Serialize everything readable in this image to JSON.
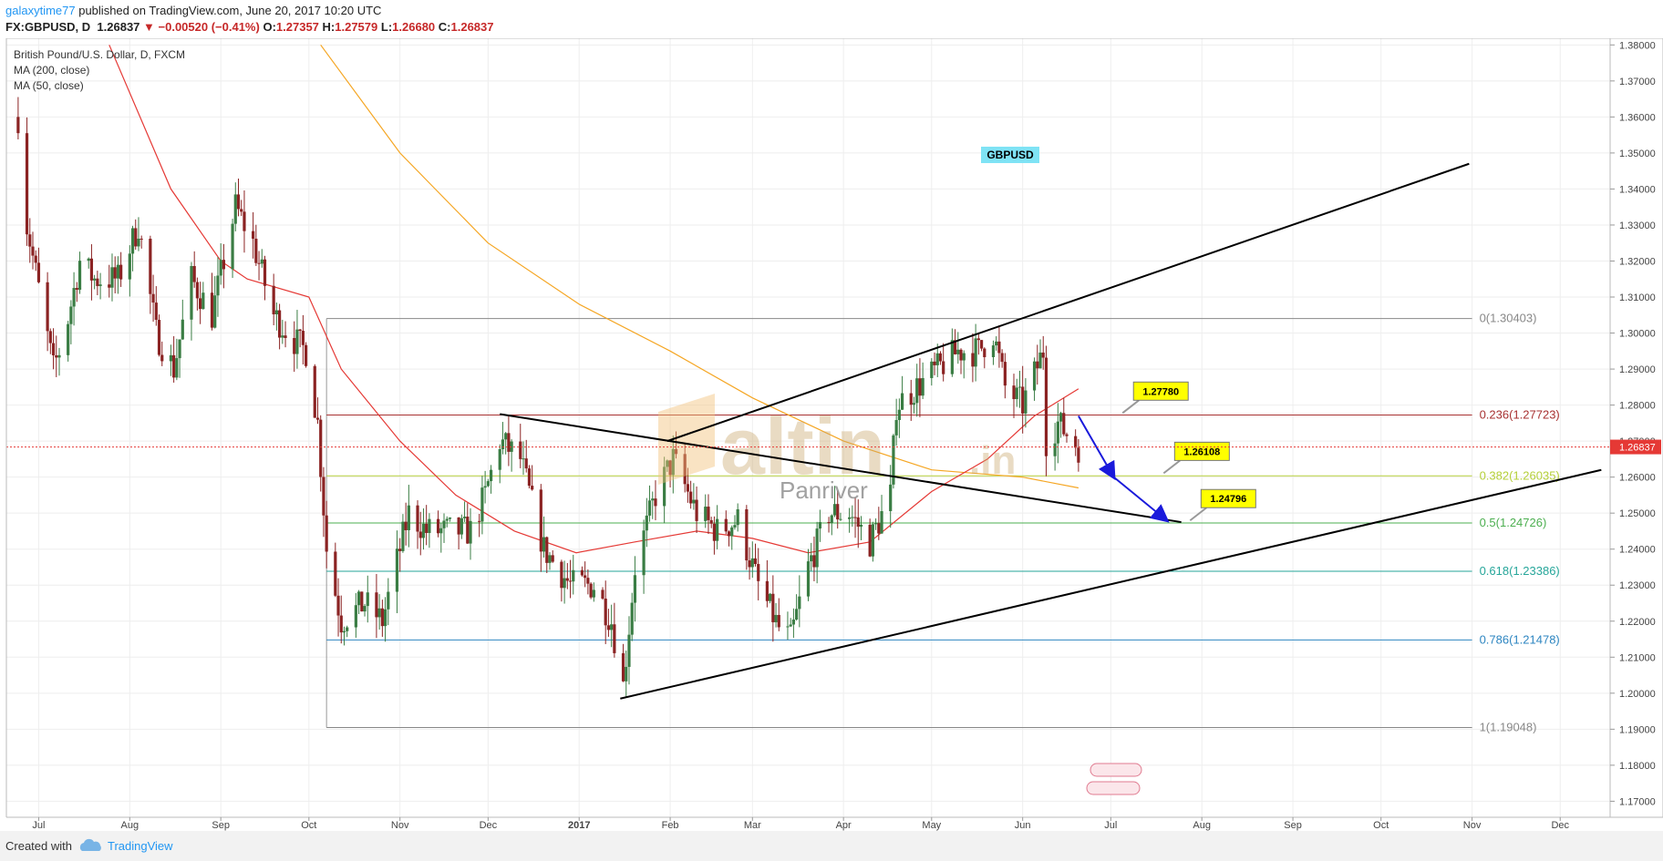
{
  "header": {
    "author": "galaxytime77",
    "published": " published on TradingView.com, June 20, 2017 10:20 UTC",
    "symbol": "FX:GBPUSD, D",
    "last": "1.26837",
    "change": "▼ −0.00520 (−0.41%)",
    "o_label": "O:",
    "o": "1.27357",
    "h_label": "H:",
    "h": "1.27579",
    "l_label": "L:",
    "l": "1.26680",
    "c_label": "C:",
    "c": "1.26837"
  },
  "legend": {
    "line1": "British Pound/U.S. Dollar, D, FXCM",
    "line2": "MA (200, close)",
    "line3": "MA (50, close)"
  },
  "footer": {
    "created_with": "Created with",
    "brand": "TradingView"
  },
  "colors": {
    "up": "#3a7d44",
    "down": "#8b2323",
    "ma50": "#e53935",
    "ma200": "#f5a623",
    "trend": "#000000",
    "arrow": "#1a1adb",
    "callout": "#ffff00",
    "last_price": "#e53935"
  },
  "watermark": {
    "brand": "altin",
    "suffix": ".in",
    "sub": "Panriver"
  },
  "chart_data": {
    "type": "candlestick",
    "title": "British Pound/U.S. Dollar, D, FXCM",
    "ylim": [
      1.16555,
      1.38185
    ],
    "x_domain": [
      "2016-06-20",
      "2017-12-18"
    ],
    "y_ticks": [
      "1.38000",
      "1.37000",
      "1.36000",
      "1.35000",
      "1.34000",
      "1.33000",
      "1.32000",
      "1.31000",
      "1.30000",
      "1.29000",
      "1.28000",
      "1.27000",
      "1.26000",
      "1.25000",
      "1.24000",
      "1.23000",
      "1.22000",
      "1.21000",
      "1.20000",
      "1.19000",
      "1.18000",
      "1.17000"
    ],
    "x_ticks": [
      {
        "label": "Jul",
        "date": "2016-07-01"
      },
      {
        "label": "Aug",
        "date": "2016-08-01"
      },
      {
        "label": "Sep",
        "date": "2016-09-01"
      },
      {
        "label": "Oct",
        "date": "2016-10-01"
      },
      {
        "label": "Nov",
        "date": "2016-11-01"
      },
      {
        "label": "Dec",
        "date": "2016-12-01"
      },
      {
        "label": "2017",
        "date": "2017-01-01"
      },
      {
        "label": "Feb",
        "date": "2017-02-01"
      },
      {
        "label": "Mar",
        "date": "2017-03-01"
      },
      {
        "label": "Apr",
        "date": "2017-04-01"
      },
      {
        "label": "May",
        "date": "2017-05-01"
      },
      {
        "label": "Jun",
        "date": "2017-06-01"
      },
      {
        "label": "Jul",
        "date": "2017-07-01"
      },
      {
        "label": "Aug",
        "date": "2017-08-01"
      },
      {
        "label": "Sep",
        "date": "2017-09-01"
      },
      {
        "label": "Oct",
        "date": "2017-10-01"
      },
      {
        "label": "Nov",
        "date": "2017-11-01"
      },
      {
        "label": "Dec",
        "date": "2017-12-01"
      }
    ],
    "price_path": [
      [
        "2016-06-24",
        1.36
      ],
      [
        "2016-06-27",
        1.33
      ],
      [
        "2016-07-06",
        1.29
      ],
      [
        "2016-07-10",
        1.3
      ],
      [
        "2016-07-15",
        1.32
      ],
      [
        "2016-07-20",
        1.315
      ],
      [
        "2016-07-28",
        1.315
      ],
      [
        "2016-08-04",
        1.33
      ],
      [
        "2016-08-10",
        1.3
      ],
      [
        "2016-08-16",
        1.29
      ],
      [
        "2016-08-22",
        1.315
      ],
      [
        "2016-08-29",
        1.305
      ],
      [
        "2016-09-06",
        1.335
      ],
      [
        "2016-09-12",
        1.325
      ],
      [
        "2016-09-19",
        1.305
      ],
      [
        "2016-09-26",
        1.298
      ],
      [
        "2016-09-30",
        1.295
      ],
      [
        "2016-10-04",
        1.275
      ],
      [
        "2016-10-07",
        1.24
      ],
      [
        "2016-10-12",
        1.22
      ],
      [
        "2016-10-20",
        1.225
      ],
      [
        "2016-10-26",
        1.22
      ],
      [
        "2016-11-04",
        1.25
      ],
      [
        "2016-11-10",
        1.245
      ],
      [
        "2016-11-18",
        1.245
      ],
      [
        "2016-11-25",
        1.245
      ],
      [
        "2016-11-30",
        1.255
      ],
      [
        "2016-12-05",
        1.27
      ],
      [
        "2016-12-12",
        1.265
      ],
      [
        "2016-12-20",
        1.24
      ],
      [
        "2016-12-29",
        1.23
      ],
      [
        "2017-01-06",
        1.23
      ],
      [
        "2017-01-12",
        1.22
      ],
      [
        "2017-01-16",
        1.202
      ],
      [
        "2017-01-20",
        1.235
      ],
      [
        "2017-01-27",
        1.255
      ],
      [
        "2017-02-02",
        1.265
      ],
      [
        "2017-02-10",
        1.25
      ],
      [
        "2017-02-17",
        1.245
      ],
      [
        "2017-02-24",
        1.248
      ],
      [
        "2017-03-03",
        1.23
      ],
      [
        "2017-03-10",
        1.218
      ],
      [
        "2017-03-14",
        1.215
      ],
      [
        "2017-03-20",
        1.235
      ],
      [
        "2017-03-27",
        1.25
      ],
      [
        "2017-04-03",
        1.25
      ],
      [
        "2017-04-10",
        1.242
      ],
      [
        "2017-04-17",
        1.255
      ],
      [
        "2017-04-19",
        1.28
      ],
      [
        "2017-04-26",
        1.285
      ],
      [
        "2017-05-03",
        1.29
      ],
      [
        "2017-05-10",
        1.295
      ],
      [
        "2017-05-17",
        1.295
      ],
      [
        "2017-05-22",
        1.3
      ],
      [
        "2017-05-26",
        1.285
      ],
      [
        "2017-06-01",
        1.28
      ],
      [
        "2017-06-08",
        1.295
      ],
      [
        "2017-06-09",
        1.27
      ],
      [
        "2017-06-13",
        1.275
      ],
      [
        "2017-06-20",
        1.2684
      ]
    ],
    "ma200": [
      [
        "2016-10-05",
        1.38
      ],
      [
        "2016-11-01",
        1.35
      ],
      [
        "2016-12-01",
        1.325
      ],
      [
        "2017-01-01",
        1.308
      ],
      [
        "2017-02-01",
        1.295
      ],
      [
        "2017-03-01",
        1.282
      ],
      [
        "2017-04-01",
        1.27
      ],
      [
        "2017-05-01",
        1.262
      ],
      [
        "2017-06-01",
        1.26
      ],
      [
        "2017-06-20",
        1.257
      ]
    ],
    "ma50": [
      [
        "2016-07-25",
        1.38
      ],
      [
        "2016-08-15",
        1.34
      ],
      [
        "2016-09-01",
        1.32
      ],
      [
        "2016-09-10",
        1.315
      ],
      [
        "2016-10-01",
        1.31
      ],
      [
        "2016-10-12",
        1.29
      ],
      [
        "2016-11-01",
        1.27
      ],
      [
        "2016-11-20",
        1.255
      ],
      [
        "2016-12-10",
        1.245
      ],
      [
        "2016-12-31",
        1.239
      ],
      [
        "2017-01-20",
        1.242
      ],
      [
        "2017-02-10",
        1.245
      ],
      [
        "2017-03-01",
        1.243
      ],
      [
        "2017-03-20",
        1.239
      ],
      [
        "2017-04-10",
        1.242
      ],
      [
        "2017-05-01",
        1.256
      ],
      [
        "2017-05-20",
        1.265
      ],
      [
        "2017-06-05",
        1.277
      ],
      [
        "2017-06-20",
        1.2845
      ]
    ],
    "fib_levels": [
      {
        "ratio": "0",
        "value": 1.30403,
        "label": "0(1.30403)",
        "color": "#888888"
      },
      {
        "ratio": "0.236",
        "value": 1.27723,
        "label": "0.236(1.27723)",
        "color": "#a83232"
      },
      {
        "ratio": "0.382",
        "value": 1.26035,
        "label": "0.382(1.26035)",
        "color": "#b5cf3a"
      },
      {
        "ratio": "0.5",
        "value": 1.24726,
        "label": "0.5(1.24726)",
        "color": "#4caf50"
      },
      {
        "ratio": "0.618",
        "value": 1.23386,
        "label": "0.618(1.23386)",
        "color": "#26a69a"
      },
      {
        "ratio": "0.786",
        "value": 1.21478,
        "label": "0.786(1.21478)",
        "color": "#2e86c1"
      },
      {
        "ratio": "1",
        "value": 1.19048,
        "label": "1(1.19048)",
        "color": "#888888"
      }
    ],
    "fib_start": "2016-10-07",
    "fib_end": "2017-11-01",
    "trendlines": [
      {
        "name": "upper-channel",
        "from": [
          "2017-01-31",
          1.27
        ],
        "to": [
          "2017-10-31",
          1.347
        ]
      },
      {
        "name": "lower-channel",
        "from": [
          "2017-01-15",
          1.1985
        ],
        "to": [
          "2017-12-15",
          1.262
        ]
      },
      {
        "name": "falling-line",
        "from": [
          "2016-12-05",
          1.2775
        ],
        "to": [
          "2017-07-25",
          1.2475
        ]
      }
    ],
    "projection_arrow": [
      [
        "2017-06-20",
        1.277
      ],
      [
        "2017-07-02",
        1.26
      ],
      [
        "2017-07-20",
        1.248
      ]
    ],
    "callouts": [
      {
        "text": "1.27780",
        "value": 1.2778,
        "date": "2017-07-05"
      },
      {
        "text": "1.26108",
        "value": 1.26108,
        "date": "2017-07-19"
      },
      {
        "text": "1.24796",
        "value": 1.24796,
        "date": "2017-07-28"
      }
    ],
    "symbol_label": "GBPUSD",
    "last_price": "1.26837",
    "last_price_value": 1.26837
  }
}
